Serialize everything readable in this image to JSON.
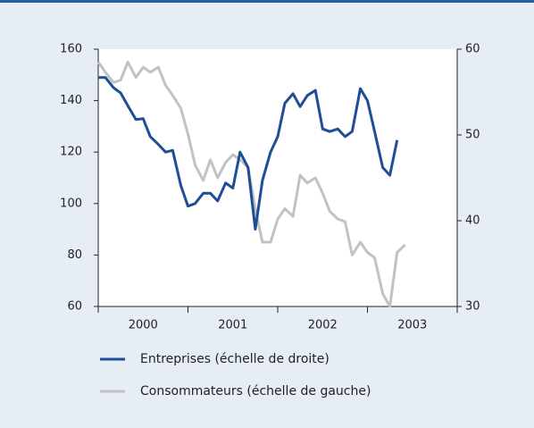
{
  "chart_data": {
    "type": "line",
    "x": [
      2000.0,
      2000.08,
      2000.17,
      2000.25,
      2000.33,
      2000.42,
      2000.5,
      2000.58,
      2000.67,
      2000.75,
      2000.83,
      2000.92,
      2001.0,
      2001.08,
      2001.17,
      2001.25,
      2001.33,
      2001.42,
      2001.5,
      2001.58,
      2001.67,
      2001.75,
      2001.83,
      2001.92,
      2002.0,
      2002.08,
      2002.17,
      2002.25,
      2002.33,
      2002.42,
      2002.5,
      2002.58,
      2002.67,
      2002.75,
      2002.83,
      2002.92,
      2003.0,
      2003.08,
      2003.17,
      2003.25,
      2003.33,
      2003.42
    ],
    "xlim": [
      2000,
      2004
    ],
    "xticks": [
      2000,
      2001,
      2002,
      2003,
      2004
    ],
    "year_labels": [
      "2000",
      "2001",
      "2002",
      "2003"
    ],
    "ylim": [
      60,
      160
    ],
    "yticks": [
      60,
      80,
      100,
      120,
      140,
      160
    ],
    "y2lim": [
      30,
      60
    ],
    "y2ticks": [
      30,
      40,
      50,
      60
    ],
    "series": [
      {
        "name": "Entreprises (échelle de droite)",
        "color": "#1f4e96",
        "axis": "y2",
        "values": [
          56.7,
          56.7,
          55.5,
          54.9,
          53.4,
          51.8,
          51.9,
          49.8,
          48.9,
          48.0,
          48.2,
          44.1,
          41.7,
          42.0,
          43.2,
          43.2,
          42.3,
          44.4,
          43.8,
          48.0,
          46.2,
          39.0,
          44.7,
          48.0,
          49.8,
          53.7,
          54.8,
          53.3,
          54.6,
          55.2,
          50.7,
          50.4,
          50.7,
          49.8,
          50.4,
          55.4,
          54.0,
          50.4,
          46.2,
          45.3,
          49.4,
          null
        ]
      },
      {
        "name": "Consommateurs (échelle de gauche)",
        "color": "#c2c2c2",
        "values": [
          155,
          151,
          147,
          148,
          155,
          149,
          153,
          151,
          153,
          146,
          142,
          137,
          127,
          115,
          109,
          117,
          110,
          116,
          119,
          117,
          114,
          98,
          85,
          85,
          94,
          98,
          95,
          111,
          108,
          110,
          104,
          97,
          94,
          93,
          80,
          85,
          81,
          79,
          65,
          60,
          81,
          84
        ]
      }
    ]
  }
}
